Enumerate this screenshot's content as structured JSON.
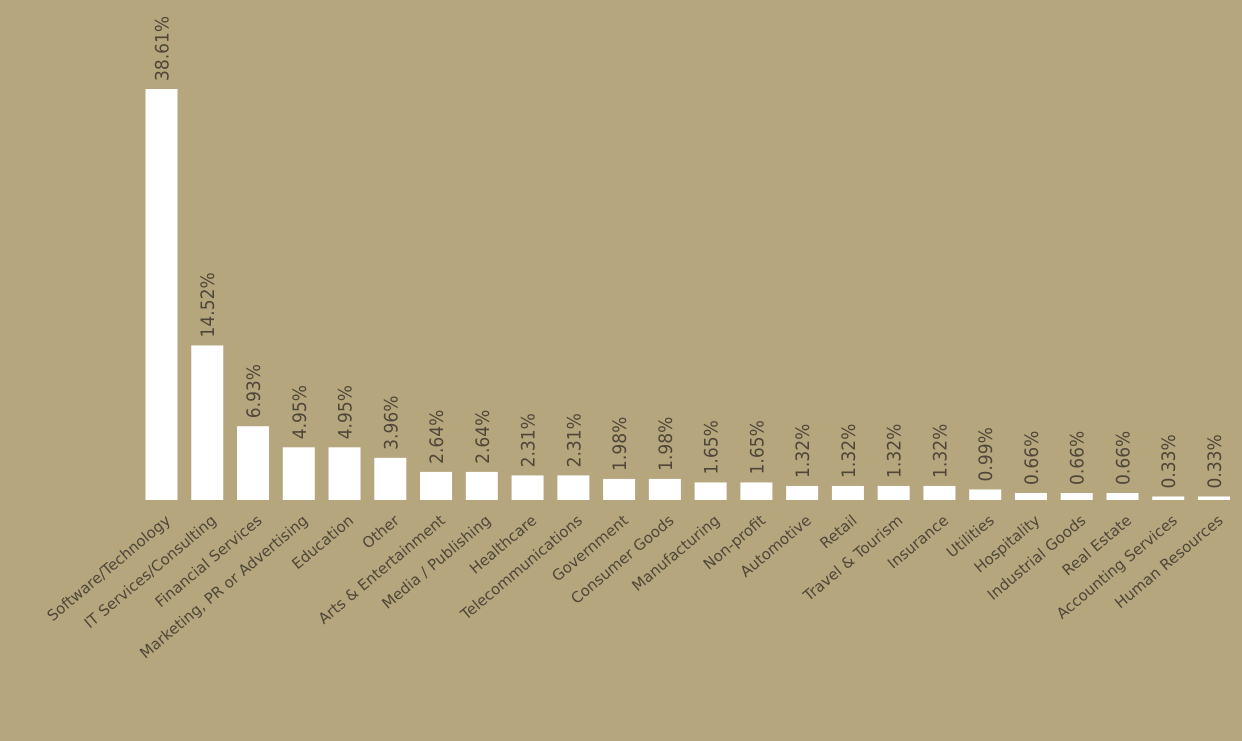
{
  "chart_data": {
    "type": "bar",
    "categories": [
      "Software/Technology",
      "IT Services/Consulting",
      "Financial Services",
      "Marketing, PR or Advertising",
      "Education",
      "Other",
      "Arts & Entertainment",
      "Media / Publishing",
      "Healthcare",
      "Telecommunications",
      "Government",
      "Consumer Goods",
      "Manufacturing",
      "Non-profit",
      "Automotive",
      "Retail",
      "Travel & Tourism",
      "Insurance",
      "Utilities",
      "Hospitality",
      "Industrial Goods",
      "Real Estate",
      "Accounting Services",
      "Human Resources"
    ],
    "values": [
      38.61,
      14.52,
      6.93,
      4.95,
      4.95,
      3.96,
      2.64,
      2.64,
      2.31,
      2.31,
      1.98,
      1.98,
      1.65,
      1.65,
      1.32,
      1.32,
      1.32,
      1.32,
      0.99,
      0.66,
      0.66,
      0.66,
      0.33,
      0.33
    ],
    "value_labels": [
      "38.61%",
      "14.52%",
      "6.93%",
      "4.95%",
      "4.95%",
      "3.96%",
      "2.64%",
      "2.64%",
      "2.31%",
      "2.31%",
      "1.98%",
      "1.98%",
      "1.65%",
      "1.65%",
      "1.32%",
      "1.32%",
      "1.32%",
      "1.32%",
      "0.99%",
      "0.66%",
      "0.66%",
      "0.66%",
      "0.33%",
      "0.33%"
    ],
    "color": "#ffffff"
  }
}
